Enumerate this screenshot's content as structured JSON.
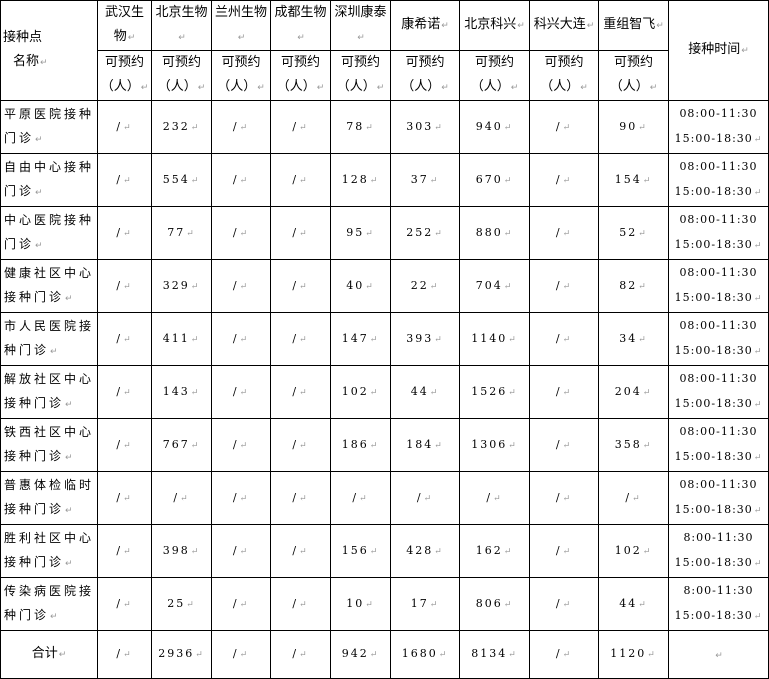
{
  "header": {
    "site_label_line1": "接种点",
    "site_label_line2": "名称",
    "vendors": [
      "武汉生物",
      "北京生物",
      "兰州生物",
      "成都生物",
      "深圳康泰",
      "康希诺",
      "北京科兴",
      "科兴大连",
      "重组智飞"
    ],
    "available_line1": "可预约",
    "available_line2": "（人）",
    "time_label": "接种时间"
  },
  "rows": [
    {
      "site": "平原医院接种门诊",
      "values": [
        "/",
        "232",
        "/",
        "/",
        "78",
        "303",
        "940",
        "/",
        "90"
      ],
      "time1": "08:00-11:30",
      "time2": "15:00-18:30"
    },
    {
      "site": "自由中心接种门诊",
      "values": [
        "/",
        "554",
        "/",
        "/",
        "128",
        "37",
        "670",
        "/",
        "154"
      ],
      "time1": "08:00-11:30",
      "time2": "15:00-18:30"
    },
    {
      "site": "中心医院接种门诊",
      "values": [
        "/",
        "77",
        "/",
        "/",
        "95",
        "252",
        "880",
        "/",
        "52"
      ],
      "time1": "08:00-11:30",
      "time2": "15:00-18:30"
    },
    {
      "site": "健康社区中心接种门诊",
      "values": [
        "/",
        "329",
        "/",
        "/",
        "40",
        "22",
        "704",
        "/",
        "82"
      ],
      "time1": "08:00-11:30",
      "time2": "15:00-18:30"
    },
    {
      "site": "市人民医院接种门诊",
      "values": [
        "/",
        "411",
        "/",
        "/",
        "147",
        "393",
        "1140",
        "/",
        "34"
      ],
      "time1": "08:00-11:30",
      "time2": "15:00-18:30"
    },
    {
      "site": "解放社区中心接种门诊",
      "values": [
        "/",
        "143",
        "/",
        "/",
        "102",
        "44",
        "1526",
        "/",
        "204"
      ],
      "time1": "08:00-11:30",
      "time2": "15:00-18:30"
    },
    {
      "site": "铁西社区中心接种门诊",
      "values": [
        "/",
        "767",
        "/",
        "/",
        "186",
        "184",
        "1306",
        "/",
        "358"
      ],
      "time1": "08:00-11:30",
      "time2": "15:00-18:30"
    },
    {
      "site": "普惠体检临时接种门诊",
      "values": [
        "/",
        "/",
        "/",
        "/",
        "/",
        "/",
        "/",
        "/",
        "/"
      ],
      "time1": "08:00-11:30",
      "time2": "15:00-18:30"
    },
    {
      "site": "胜利社区中心接种门诊",
      "values": [
        "/",
        "398",
        "/",
        "/",
        "156",
        "428",
        "162",
        "/",
        "102"
      ],
      "time1": "8:00-11:30",
      "time2": "15:00-18:30"
    },
    {
      "site": "传染病医院接种门诊",
      "values": [
        "/",
        "25",
        "/",
        "/",
        "10",
        "17",
        "806",
        "/",
        "44"
      ],
      "time1": "8:00-11:30",
      "time2": "15:00-18:30"
    }
  ],
  "total": {
    "label": "合计",
    "values": [
      "/",
      "2936",
      "/",
      "/",
      "942",
      "1680",
      "8134",
      "/",
      "1120"
    ]
  }
}
